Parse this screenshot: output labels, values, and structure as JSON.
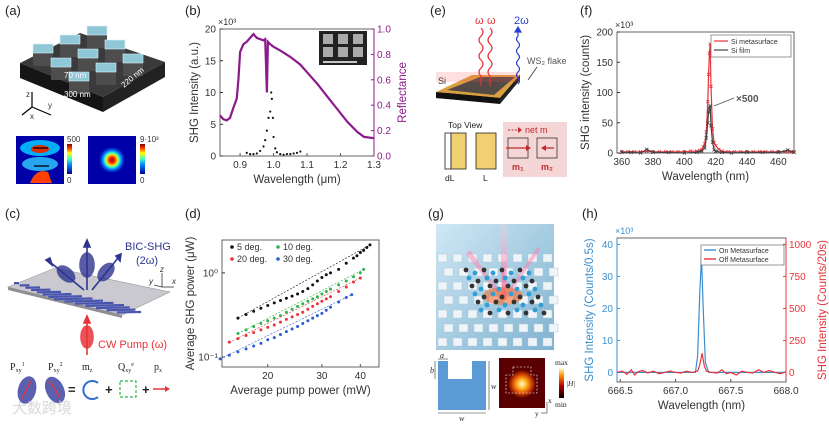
{
  "panels": {
    "a": {
      "label": "(a)",
      "dim1": "70 nm",
      "dim2": "220 nm",
      "dim3": "300 nm",
      "ax_z": "z",
      "ax_y": "y",
      "ax_x": "x",
      "cb1_max": "500",
      "cb1_min": "0",
      "cb2_max": "9·10³",
      "cb2_min": "0"
    },
    "b": {
      "label": "(b)"
    },
    "c": {
      "label": "(c)",
      "emission": "BIC-SHG",
      "emission_freq": "(2ω)",
      "pump": "CW Pump (ω)",
      "ax_y": "y",
      "ax_z": "z",
      "ax_x": "x",
      "terms": [
        "P",
        "P",
        "m",
        "Q",
        "p"
      ],
      "term_subs": [
        "xy",
        "xy",
        "z",
        "xy",
        "x"
      ],
      "term_sups": [
        "1",
        "2",
        "",
        "e",
        ""
      ],
      "eq": "=",
      "plus": "+"
    },
    "d": {
      "label": "(d)"
    },
    "e": {
      "label": "(e)",
      "omega1": "ω",
      "omega2": "ω",
      "omega_sh": "2ω",
      "flake": "WS₂ flake",
      "si": "Si",
      "top_view": "Top View",
      "net_m": "net m",
      "m1": "m₁",
      "m2": "m₂",
      "dl": "dL",
      "l": "L"
    },
    "f": {
      "label": "(f)"
    },
    "g": {
      "label": "(g)",
      "a": "a",
      "b": "b",
      "w1": "w",
      "w2": "w",
      "max": "max",
      "min": "min",
      "h": "|H|",
      "x": "x",
      "y": "y"
    },
    "h": {
      "label": "(h)"
    }
  },
  "watermark": "大数跨境",
  "colors": {
    "purple": "#8b1a8b",
    "black": "#111111",
    "red": "#e8333a",
    "blue": "#3a8fd0",
    "green": "#2db34a",
    "dblue": "#2a5bd7",
    "navy": "#2f3590"
  },
  "chart_data": [
    {
      "id": "b",
      "type": "scatter+line",
      "title": "",
      "xlabel": "Wavelength (μm)",
      "ylabel": "SHG Intensity (a.u.)",
      "y2label": "Reflectance",
      "y_multiplier": "×10³",
      "xlim": [
        0.84,
        1.3
      ],
      "ylim": [
        0,
        20
      ],
      "y2lim": [
        0,
        1.0
      ],
      "xticks": [
        "0.9",
        "1.0",
        "1.1",
        "1.2",
        "1.3"
      ],
      "xtick_values": [
        0.9,
        1.0,
        1.1,
        1.2,
        1.3
      ],
      "yticks": [
        "0",
        "5",
        "10",
        "15",
        "20"
      ],
      "ytick_values": [
        0,
        5,
        10,
        15,
        20
      ],
      "y2ticks": [
        "0.0",
        "0.2",
        "0.4",
        "0.6",
        "0.8",
        "1.0"
      ],
      "y2tick_values": [
        0,
        0.2,
        0.4,
        0.6,
        0.8,
        1.0
      ],
      "series": [
        {
          "name": "SHG",
          "axis": "left",
          "style": "dots",
          "color": "#111111",
          "x": [
            0.92,
            0.93,
            0.94,
            0.95,
            0.96,
            0.97,
            0.975,
            0.98,
            0.985,
            0.99,
            0.993,
            0.995,
            0.998,
            1.0,
            1.005,
            1.01,
            1.02,
            1.03,
            1.04,
            1.05,
            1.06,
            1.07,
            1.08
          ],
          "y": [
            0.5,
            0.3,
            0.3,
            0.4,
            0.8,
            1.5,
            2.5,
            4,
            6,
            7,
            10,
            9,
            6,
            3,
            1.2,
            0.6,
            0.3,
            0.2,
            0.3,
            0.3,
            0.4,
            0.5,
            0.7
          ]
        },
        {
          "name": "Reflectance",
          "axis": "right",
          "style": "line",
          "color": "#8b1a8b",
          "x": [
            0.84,
            0.85,
            0.86,
            0.87,
            0.88,
            0.89,
            0.895,
            0.9,
            0.91,
            0.92,
            0.93,
            0.94,
            0.95,
            0.96,
            0.97,
            0.975,
            0.98,
            0.983,
            0.99,
            1.0,
            1.02,
            1.05,
            1.08,
            1.1,
            1.13,
            1.16,
            1.19,
            1.22,
            1.25,
            1.27,
            1.3
          ],
          "y": [
            0.32,
            0.29,
            0.28,
            0.3,
            0.38,
            0.45,
            0.6,
            0.82,
            0.88,
            0.9,
            0.93,
            0.96,
            0.93,
            0.92,
            0.91,
            0.92,
            0.5,
            0.9,
            0.88,
            0.86,
            0.83,
            0.78,
            0.72,
            0.66,
            0.57,
            0.47,
            0.37,
            0.27,
            0.19,
            0.15,
            0.14
          ]
        }
      ]
    },
    {
      "id": "d",
      "type": "scatter",
      "xscale": "log",
      "yscale": "log",
      "xlabel": "Average pump power (mW)",
      "ylabel": "Average SHG power (μW)",
      "xlim": [
        14.2,
        46
      ],
      "ylim": [
        0.076,
        2.46
      ],
      "xticks": [
        "20",
        "30",
        "40"
      ],
      "xtick_values": [
        20,
        30,
        40
      ],
      "yticks": [
        "10⁻¹",
        "10⁰"
      ],
      "ytick_values": [
        0.1,
        1
      ],
      "legend": "top-left",
      "series": [
        {
          "name": "5 deg.",
          "color": "#111111",
          "x": [
            16,
            17,
            18,
            19,
            20,
            21,
            22,
            23,
            24,
            25,
            26,
            27,
            28,
            29,
            30,
            31,
            32,
            34,
            36,
            38,
            39,
            40,
            41,
            42,
            43
          ],
          "y": [
            0.29,
            0.32,
            0.35,
            0.38,
            0.41,
            0.44,
            0.47,
            0.5,
            0.53,
            0.56,
            0.6,
            0.65,
            0.72,
            0.8,
            0.88,
            0.95,
            1.0,
            1.1,
            1.3,
            1.5,
            1.6,
            1.75,
            1.85,
            2.0,
            2.15
          ]
        },
        {
          "name": "10 deg.",
          "color": "#2db34a",
          "x": [
            16,
            17,
            18,
            19,
            20,
            21,
            22,
            23,
            24,
            25,
            26,
            27,
            28,
            29,
            30,
            31,
            32,
            34,
            36,
            38,
            40,
            41
          ],
          "y": [
            0.19,
            0.21,
            0.23,
            0.25,
            0.27,
            0.29,
            0.31,
            0.34,
            0.37,
            0.4,
            0.43,
            0.46,
            0.49,
            0.52,
            0.56,
            0.6,
            0.64,
            0.72,
            0.8,
            0.9,
            1.0,
            1.1
          ]
        },
        {
          "name": "20 deg.",
          "color": "#e8333a",
          "x": [
            15,
            16,
            17,
            18,
            19,
            20,
            21,
            22,
            23,
            24,
            25,
            26,
            27,
            28,
            29,
            30,
            31,
            32,
            34,
            36,
            38,
            40
          ],
          "y": [
            0.15,
            0.165,
            0.18,
            0.195,
            0.21,
            0.225,
            0.24,
            0.26,
            0.28,
            0.3,
            0.32,
            0.34,
            0.37,
            0.4,
            0.43,
            0.46,
            0.49,
            0.52,
            0.6,
            0.68,
            0.78,
            0.87
          ]
        },
        {
          "name": "30 deg.",
          "color": "#2a5bd7",
          "x": [
            14,
            15,
            16,
            17,
            18,
            19,
            20,
            21,
            22,
            23,
            24,
            25,
            26,
            27,
            28,
            29,
            30,
            31,
            32,
            34,
            36,
            37.5
          ],
          "y": [
            0.095,
            0.105,
            0.115,
            0.125,
            0.135,
            0.145,
            0.16,
            0.17,
            0.185,
            0.2,
            0.215,
            0.23,
            0.25,
            0.27,
            0.29,
            0.31,
            0.33,
            0.36,
            0.39,
            0.45,
            0.51,
            0.55
          ]
        }
      ]
    },
    {
      "id": "f",
      "type": "line",
      "xlabel": "Wavelength (nm)",
      "ylabel": "SHG intensity (counts)",
      "y_multiplier": "×10³",
      "xlim": [
        357,
        470
      ],
      "ylim": [
        0,
        200
      ],
      "xticks": [
        "360",
        "380",
        "400",
        "420",
        "440",
        "460"
      ],
      "xtick_values": [
        360,
        380,
        400,
        420,
        440,
        460
      ],
      "yticks": [
        "0",
        "50",
        "100",
        "150",
        "200"
      ],
      "ytick_values": [
        0,
        50,
        100,
        150,
        200
      ],
      "annotation": "×500",
      "legend": "top-right",
      "series": [
        {
          "name": "Si metasurface",
          "color": "#e8333a",
          "x": [
            360,
            364,
            368,
            372,
            376,
            380,
            384,
            388,
            392,
            396,
            400,
            404,
            408,
            410,
            411,
            412,
            413,
            414,
            415,
            415.5,
            416,
            416.5,
            417,
            418,
            419,
            420,
            422,
            424,
            428,
            432,
            436,
            440,
            444,
            448,
            452,
            456,
            460,
            464,
            468,
            470
          ],
          "y": [
            2,
            2,
            2,
            2,
            3,
            2,
            2,
            2,
            2,
            2,
            2,
            3,
            3,
            4,
            5,
            10,
            15,
            35,
            85,
            130,
            165,
            180,
            110,
            40,
            17,
            12,
            6,
            3,
            2,
            2,
            2,
            2,
            2,
            2,
            2,
            2,
            2,
            2,
            2,
            2
          ]
        },
        {
          "name": "Si film",
          "color": "#444444",
          "x": [
            360,
            366,
            372,
            376,
            380,
            390,
            400,
            408,
            411,
            413,
            414,
            415,
            415.5,
            416,
            416.5,
            417,
            418,
            419,
            420,
            424,
            430,
            440,
            450,
            460,
            466,
            470
          ],
          "y": [
            1,
            1,
            0,
            6,
            1,
            1,
            0,
            1,
            3,
            8,
            25,
            50,
            68,
            75,
            78,
            45,
            18,
            5,
            3,
            1,
            0,
            1,
            1,
            1,
            5,
            1
          ]
        }
      ]
    },
    {
      "id": "h",
      "type": "line",
      "xlabel": "Wavelength (nm)",
      "ylabel": "SHG Intensity (Counts/0.5s)",
      "y2label": "SHG Intensity (Counts/20s)",
      "y_multiplier": "×10³",
      "xlim": [
        666.47,
        668.0
      ],
      "ylim": [
        -3,
        42
      ],
      "y2lim": [
        -75,
        1050
      ],
      "xticks": [
        "666.5",
        "667.0",
        "667.5",
        "668.0"
      ],
      "xtick_values": [
        666.5,
        667.0,
        667.5,
        668.0
      ],
      "yticks": [
        "0",
        "10",
        "20",
        "30",
        "40"
      ],
      "ytick_values": [
        0,
        10,
        20,
        30,
        40
      ],
      "y2ticks": [
        "0",
        "250",
        "500",
        "750",
        "1000"
      ],
      "y2tick_values": [
        0,
        250,
        500,
        750,
        1000
      ],
      "legend": "top-right",
      "series": [
        {
          "name": "On Metasurface",
          "axis": "left",
          "color": "#3a8fd0",
          "x": [
            666.47,
            666.8,
            667.1,
            667.18,
            667.2,
            667.22,
            667.235,
            667.25,
            667.27,
            667.3,
            667.5,
            668.0
          ],
          "y": [
            0,
            0,
            0,
            0,
            5,
            25,
            36,
            20,
            3,
            0,
            0,
            0
          ]
        },
        {
          "name": "Off Metasurface",
          "axis": "right",
          "color": "#e8333a",
          "x": [
            666.47,
            666.52,
            666.56,
            666.6,
            666.63,
            666.66,
            666.7,
            666.75,
            666.8,
            666.85,
            666.9,
            666.95,
            667.0,
            667.05,
            667.1,
            667.15,
            667.2,
            667.22,
            667.24,
            667.26,
            667.28,
            667.32,
            667.38,
            667.42,
            667.46,
            667.5,
            667.55,
            667.6,
            667.65,
            667.7,
            667.75,
            667.8,
            667.85,
            667.9,
            667.95,
            668.0
          ],
          "y": [
            0,
            10,
            -15,
            20,
            -20,
            5,
            15,
            -5,
            10,
            -10,
            0,
            10,
            0,
            -5,
            10,
            0,
            10,
            60,
            150,
            50,
            10,
            0,
            -5,
            20,
            -10,
            0,
            -20,
            10,
            0,
            -5,
            20,
            0,
            15,
            0,
            -10,
            5
          ]
        }
      ]
    }
  ],
  "legend_f": [
    "Si metasurface",
    "Si film"
  ],
  "legend_h": [
    "On Metasurface",
    "Off Metasurface"
  ]
}
